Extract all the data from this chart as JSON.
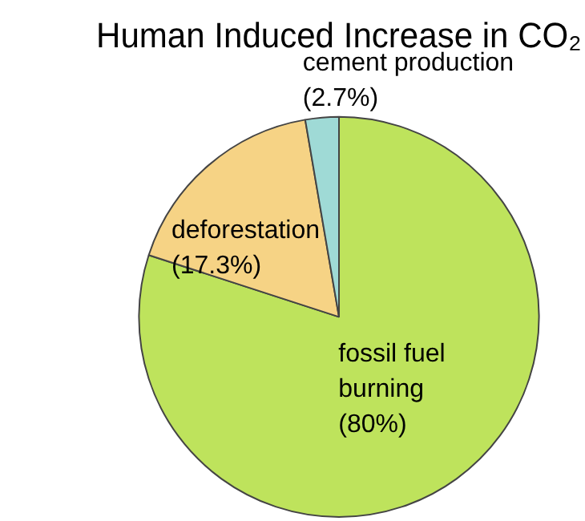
{
  "chart_data": {
    "type": "pie",
    "title": "Human Induced Increase in CO₂",
    "categories": [
      "fossil fuel burning",
      "deforestation",
      "cement production"
    ],
    "values": [
      80,
      17.3,
      2.7
    ],
    "colors": [
      "#bee35c",
      "#f6d385",
      "#9fdad6"
    ],
    "value_labels": [
      "(80%)",
      "(17.3%)",
      "(2.7%)"
    ],
    "legend": false
  }
}
